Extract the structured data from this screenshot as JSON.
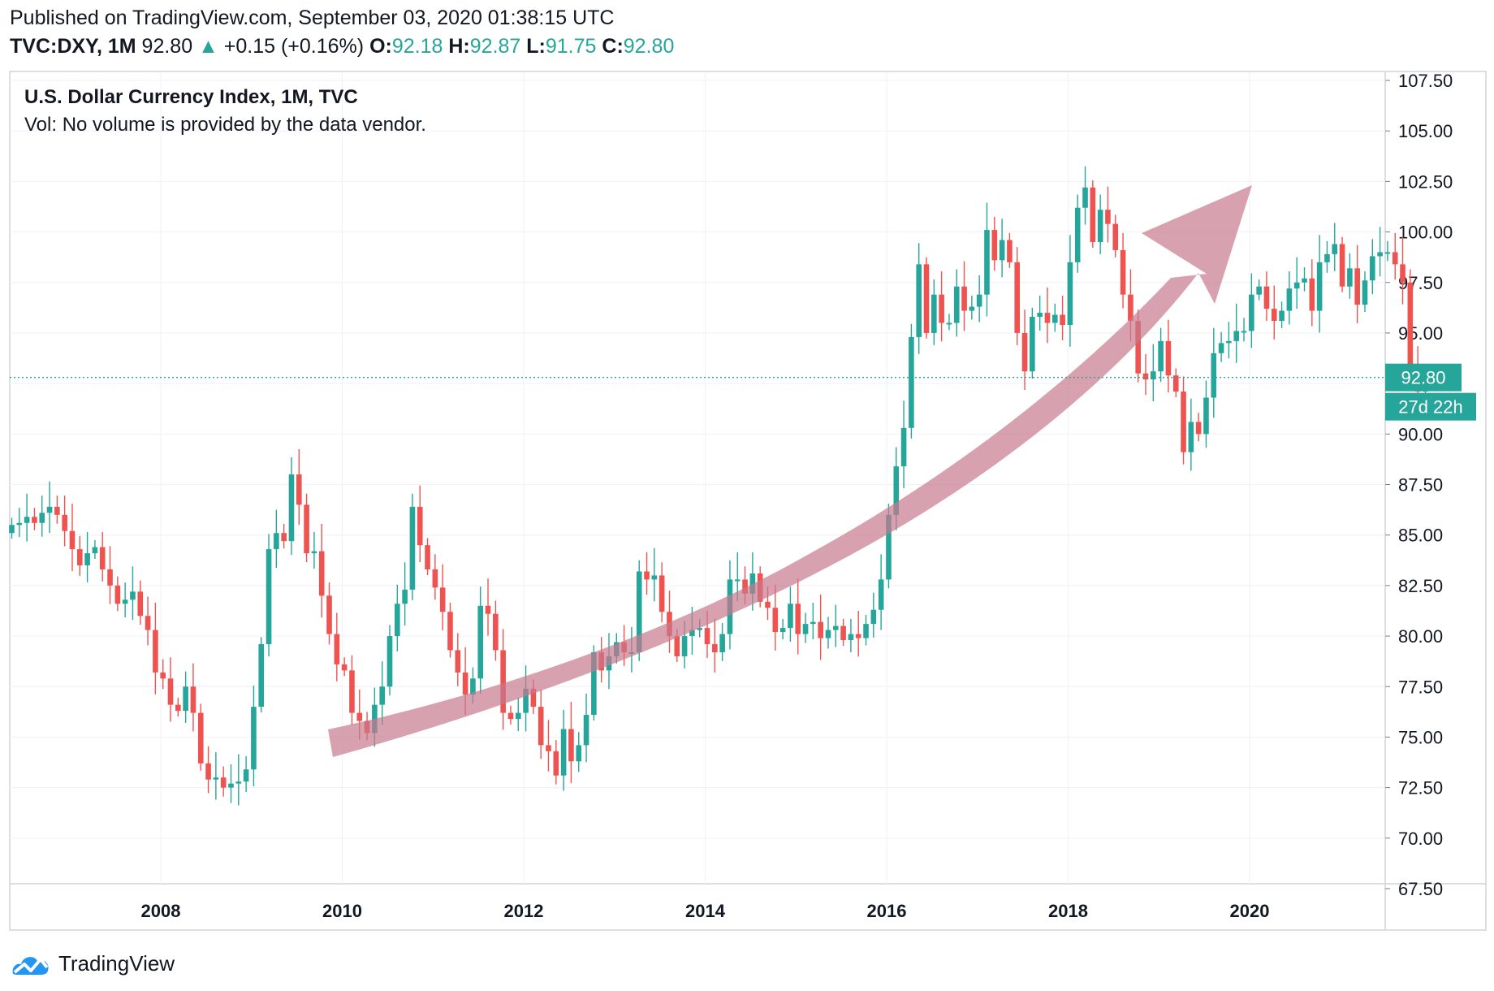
{
  "header": {
    "published": "Published on TradingView.com, September 03, 2020 01:38:15 UTC",
    "symbol": "TVC:DXY, 1M",
    "last": "92.80",
    "change": "+0.15 (+0.16%)",
    "o_label": "O:",
    "o_value": "92.18",
    "h_label": "H:",
    "h_value": "92.87",
    "l_label": "L:",
    "l_value": "91.75",
    "c_label": "C:",
    "c_value": "92.80"
  },
  "legend": {
    "title": "U.S. Dollar Currency Index, 1M, TVC",
    "volume_note": "Vol: No volume is provided by the data vendor."
  },
  "price_label": "92.80",
  "countdown_label": "27d 22h",
  "footer": {
    "brand": "TradingView"
  },
  "colors": {
    "up": "#26a69a",
    "down": "#ef5350",
    "grid": "#f0f3fa",
    "arrow": "#c8798d"
  },
  "chart_data": {
    "type": "candlestick",
    "title": "U.S. Dollar Currency Index, 1M, TVC",
    "x_ticks": [
      "2008",
      "2010",
      "2012",
      "2014",
      "2016",
      "2018",
      "2020"
    ],
    "y_ticks": [
      "67.50",
      "70.00",
      "72.50",
      "75.00",
      "77.50",
      "80.00",
      "82.50",
      "85.00",
      "87.50",
      "90.00",
      "92.50",
      "95.00",
      "97.50",
      "100.00",
      "102.50",
      "105.00",
      "107.50"
    ],
    "ylim": [
      67.5,
      107.5
    ],
    "last_price_line": 92.8,
    "grid": true,
    "annotation": "curved upward arrow from late 2009 (~74) to early 2020 (~102)",
    "close": [
      85.5,
      85.6,
      85.9,
      85.6,
      86.1,
      86.4,
      86.0,
      85.2,
      84.3,
      83.5,
      84.1,
      84.4,
      83.3,
      82.5,
      81.6,
      81.8,
      82.2,
      81.0,
      80.3,
      78.2,
      77.9,
      76.6,
      76.3,
      77.5,
      76.2,
      73.7,
      72.9,
      73.0,
      72.5,
      72.7,
      72.8,
      73.4,
      76.5,
      79.6,
      84.3,
      85.1,
      84.7,
      88.0,
      86.5,
      84.1,
      84.2,
      82.0,
      80.1,
      78.6,
      78.3,
      76.2,
      75.8,
      75.2,
      76.6,
      77.5,
      80.0,
      81.6,
      82.3,
      86.4,
      84.5,
      83.3,
      82.4,
      81.2,
      79.3,
      78.2,
      77.1,
      77.9,
      81.5,
      81.1,
      79.3,
      76.2,
      75.9,
      76.2,
      77.4,
      76.5,
      74.6,
      74.3,
      73.1,
      75.4,
      73.8,
      74.6,
      76.1,
      79.2,
      78.3,
      79.0,
      79.7,
      79.2,
      79.2,
      83.2,
      82.8,
      83.0,
      81.2,
      80.0,
      79.0,
      80.0,
      80.3,
      80.4,
      79.6,
      79.2,
      80.1,
      82.8,
      82.8,
      82.1,
      83.1,
      81.7,
      81.4,
      80.2,
      80.4,
      81.6,
      80.1,
      80.6,
      80.7,
      79.9,
      80.3,
      80.5,
      79.8,
      80.1,
      79.9,
      80.6,
      81.3,
      82.8,
      86.0,
      88.4,
      90.3,
      94.8,
      98.4,
      95.0,
      96.9,
      95.5,
      95.5,
      97.3,
      96.1,
      96.3,
      96.9,
      100.1,
      98.6,
      99.6,
      98.5,
      95.0,
      93.1,
      95.8,
      96.0,
      95.5,
      95.9,
      95.4,
      98.5,
      101.2,
      102.2,
      99.5,
      101.1,
      100.4,
      99.1,
      96.9,
      95.6,
      93.0,
      92.7,
      93.1,
      94.6,
      92.9,
      92.1,
      89.1,
      90.6,
      90.0,
      91.8,
      94.0,
      94.5,
      94.6,
      95.1,
      95.1,
      96.9,
      97.3,
      96.2,
      95.6,
      96.1,
      97.2,
      97.5,
      97.7,
      96.1,
      98.5,
      98.9,
      99.4,
      97.3,
      98.2,
      96.4,
      97.6,
      98.8,
      99.0,
      99.0,
      98.4,
      97.5,
      93.3,
      92.1,
      92.8
    ]
  }
}
